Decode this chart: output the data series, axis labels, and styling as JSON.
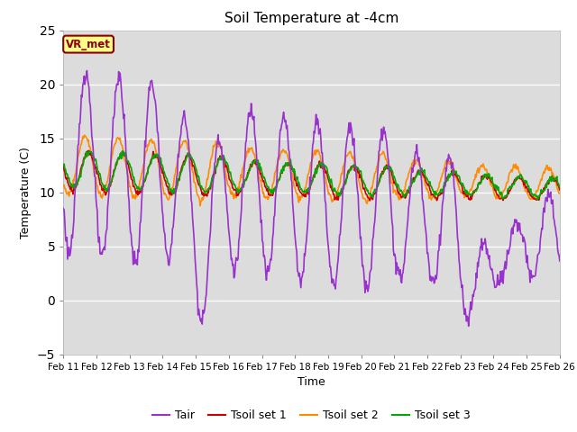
{
  "title": "Soil Temperature at -4cm",
  "xlabel": "Time",
  "ylabel": "Temperature (C)",
  "ylim": [
    -5,
    25
  ],
  "xlim": [
    0,
    15
  ],
  "x_tick_labels": [
    "Feb 11",
    "Feb 12",
    "Feb 13",
    "Feb 14",
    "Feb 15",
    "Feb 16",
    "Feb 17",
    "Feb 18",
    "Feb 19",
    "Feb 20",
    "Feb 21",
    "Feb 22",
    "Feb 23",
    "Feb 24",
    "Feb 25",
    "Feb 26"
  ],
  "legend_label": "VR_met",
  "bg_color": "#dcdcdc",
  "line_colors": {
    "Tair": "#9932CC",
    "Tsoil_set1": "#CC0000",
    "Tsoil_set2": "#FF8C00",
    "Tsoil_set3": "#00AA00"
  },
  "legend_entries": [
    "Tair",
    "Tsoil set 1",
    "Tsoil set 2",
    "Tsoil set 3"
  ]
}
